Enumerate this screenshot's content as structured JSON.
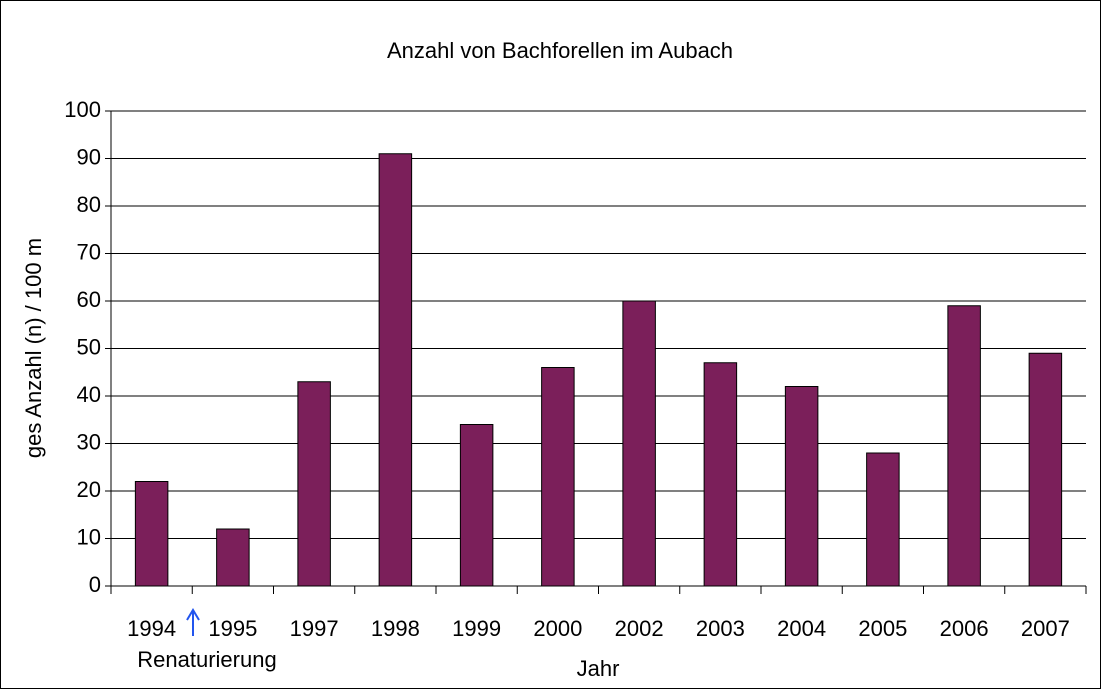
{
  "chart_data": {
    "type": "bar",
    "title": "Anzahl von Bachforellen im Aubach",
    "x_label": "Jahr",
    "y_label": "ges Anzahl (n) / 100 m",
    "annotation": "Renaturierung",
    "categories": [
      "1994",
      "1995",
      "1997",
      "1998",
      "1999",
      "2000",
      "2002",
      "2003",
      "2004",
      "2005",
      "2006",
      "2007"
    ],
    "values": [
      22,
      12,
      43,
      91,
      34,
      46,
      60,
      47,
      42,
      28,
      59,
      49
    ],
    "color": "#7b1f5a",
    "ylim": [
      0,
      100
    ],
    "yticks": [
      0,
      10,
      20,
      30,
      40,
      50,
      60,
      70,
      80,
      90,
      100
    ],
    "grid": true
  }
}
